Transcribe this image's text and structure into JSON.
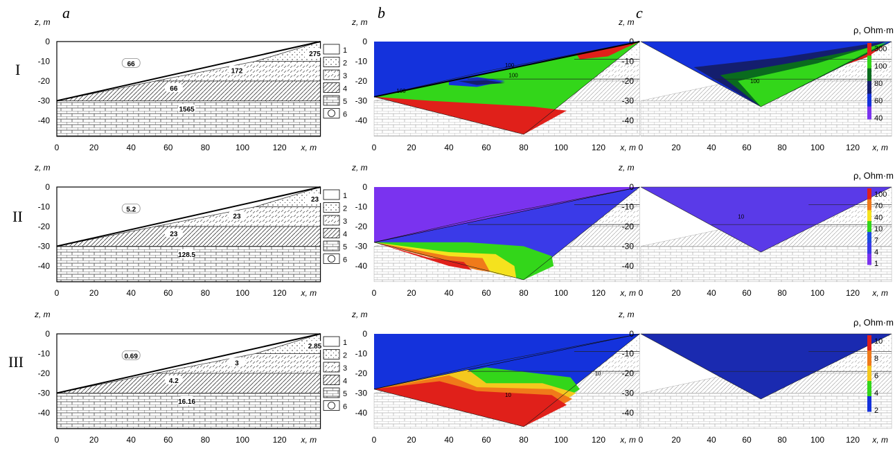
{
  "column_labels": [
    "a",
    "b",
    "c"
  ],
  "row_labels": [
    "I",
    "II",
    "III"
  ],
  "axis": {
    "z_label": "z, m",
    "x_label": "x, m",
    "z_ticks": [
      "0",
      "-10",
      "-20",
      "-30",
      "-40"
    ],
    "x_ticks": [
      "0",
      "20",
      "40",
      "60",
      "80",
      "100",
      "120"
    ]
  },
  "legend_items": [
    "1",
    "2",
    "3",
    "4",
    "5",
    "6"
  ],
  "colorbar_title": "ρ, Ohm·m",
  "rows": [
    {
      "model_values": [
        "66",
        "275",
        "172",
        "66",
        "1565"
      ],
      "colorbar_ticks": [
        "300",
        "100",
        "80",
        "60",
        "40"
      ],
      "colorbar_colors": [
        "#e0201a",
        "#33d61a",
        "#0a6b1e",
        "#141e6e",
        "#1432dc",
        "#7a33ef"
      ],
      "b_contour_labels": [
        "100",
        "100",
        "100"
      ],
      "c_contour_labels": [
        "100"
      ]
    },
    {
      "model_values": [
        "5.2",
        "23",
        "23",
        "23",
        "128.5"
      ],
      "colorbar_ticks": [
        "100",
        "70",
        "40",
        "10",
        "7",
        "4",
        "1"
      ],
      "colorbar_colors": [
        "#e0201a",
        "#f07a1a",
        "#f5e21e",
        "#33d61a",
        "#1e4be0",
        "#3a3ae8",
        "#7a33ef"
      ],
      "b_contour_labels": [],
      "c_contour_labels": [
        "10"
      ]
    },
    {
      "model_values": [
        "0.69",
        "2.85",
        "3",
        "4.2",
        "16.16"
      ],
      "colorbar_ticks": [
        "10",
        "8",
        "6",
        "4",
        "2"
      ],
      "colorbar_colors": [
        "#e0201a",
        "#f07a1a",
        "#f5c81e",
        "#33d61a",
        "#1432dc"
      ],
      "b_contour_labels": [
        "10",
        "10"
      ],
      "c_contour_labels": []
    }
  ]
}
